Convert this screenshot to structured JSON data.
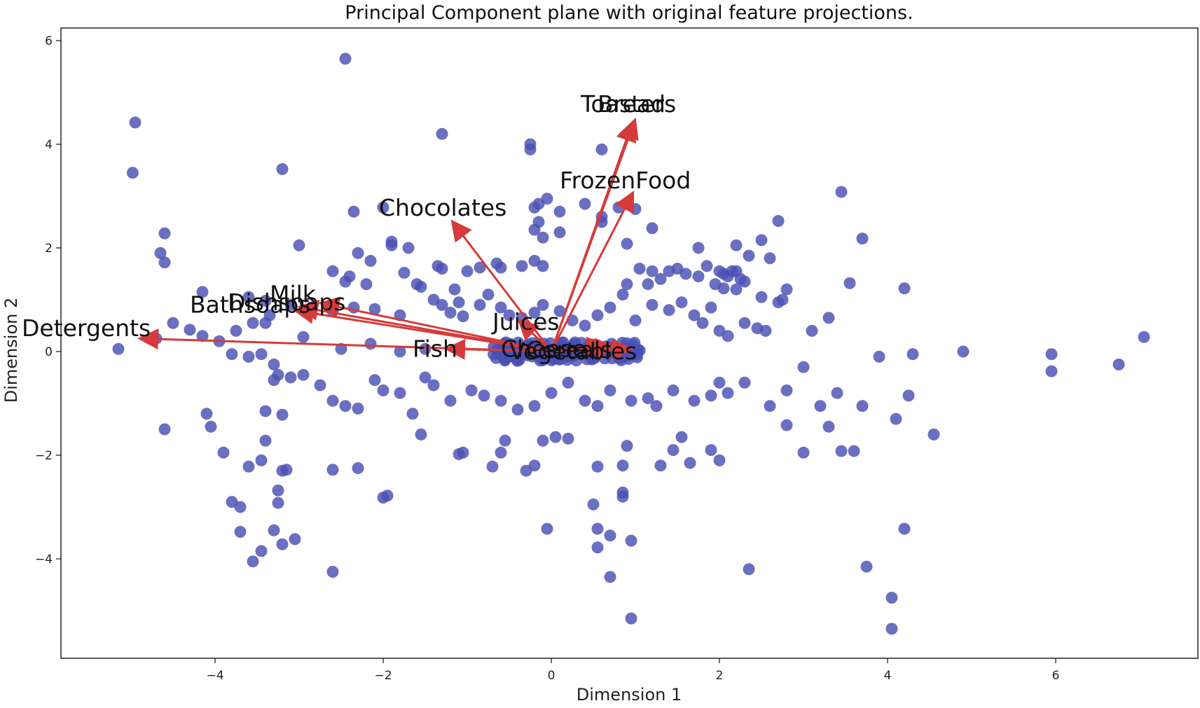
{
  "chart_data": {
    "type": "scatter",
    "title": "Principal Component plane with original feature projections.",
    "xlabel": "Dimension 1",
    "ylabel": "Dimension 2",
    "xlim": [
      -5.8,
      7.8
    ],
    "ylim": [
      -5.9,
      6.3
    ],
    "xticks": [
      -4,
      -2,
      0,
      2,
      4,
      6
    ],
    "yticks": [
      -4,
      -2,
      0,
      2,
      4,
      6
    ],
    "grid": false,
    "point_color": "#4b4fb3",
    "arrow_color": "#d63a3a",
    "points": [
      [
        -2.45,
        5.65
      ],
      [
        -4.95,
        4.42
      ],
      [
        -4.98,
        3.45
      ],
      [
        -3.2,
        3.52
      ],
      [
        -1.3,
        4.2
      ],
      [
        -0.25,
        4.0
      ],
      [
        -0.25,
        3.9
      ],
      [
        0.6,
        3.9
      ],
      [
        3.45,
        3.08
      ],
      [
        -2.35,
        2.7
      ],
      [
        -2.0,
        2.78
      ],
      [
        -4.6,
        2.28
      ],
      [
        -4.65,
        1.9
      ],
      [
        -4.6,
        1.72
      ],
      [
        -3.0,
        2.05
      ],
      [
        -1.9,
        2.12
      ],
      [
        -1.9,
        2.05
      ],
      [
        -1.7,
        2.0
      ],
      [
        -2.3,
        1.9
      ],
      [
        -2.15,
        1.75
      ],
      [
        -2.6,
        1.55
      ],
      [
        -2.4,
        1.45
      ],
      [
        -2.45,
        1.35
      ],
      [
        -2.2,
        1.3
      ],
      [
        -1.75,
        1.52
      ],
      [
        -1.6,
        1.3
      ],
      [
        -1.35,
        1.65
      ],
      [
        -1.3,
        1.6
      ],
      [
        -1.15,
        1.2
      ],
      [
        -1.0,
        1.55
      ],
      [
        -0.85,
        1.62
      ],
      [
        -0.65,
        1.7
      ],
      [
        -0.6,
        1.62
      ],
      [
        -0.35,
        1.65
      ],
      [
        -0.2,
        1.75
      ],
      [
        -0.1,
        1.65
      ],
      [
        -0.2,
        2.35
      ],
      [
        -0.1,
        2.2
      ],
      [
        -0.15,
        2.5
      ],
      [
        -0.2,
        2.78
      ],
      [
        -0.15,
        2.85
      ],
      [
        -0.05,
        2.95
      ],
      [
        0.1,
        2.7
      ],
      [
        0.1,
        2.3
      ],
      [
        0.4,
        2.85
      ],
      [
        0.6,
        2.6
      ],
      [
        0.6,
        2.5
      ],
      [
        0.8,
        2.78
      ],
      [
        1.0,
        2.75
      ],
      [
        1.2,
        2.38
      ],
      [
        0.9,
        2.08
      ],
      [
        1.05,
        1.6
      ],
      [
        1.15,
        1.3
      ],
      [
        1.2,
        1.55
      ],
      [
        1.3,
        1.4
      ],
      [
        1.4,
        1.55
      ],
      [
        1.5,
        1.6
      ],
      [
        1.75,
        2.0
      ],
      [
        1.75,
        1.45
      ],
      [
        1.85,
        1.65
      ],
      [
        1.6,
        1.5
      ],
      [
        1.95,
        1.3
      ],
      [
        2.0,
        1.55
      ],
      [
        2.05,
        1.5
      ],
      [
        2.1,
        1.45
      ],
      [
        2.15,
        1.55
      ],
      [
        2.2,
        1.55
      ],
      [
        2.25,
        1.4
      ],
      [
        2.2,
        1.2
      ],
      [
        2.05,
        1.22
      ],
      [
        2.3,
        1.35
      ],
      [
        2.2,
        2.05
      ],
      [
        2.35,
        1.85
      ],
      [
        2.5,
        2.15
      ],
      [
        2.6,
        1.8
      ],
      [
        2.7,
        2.52
      ],
      [
        3.7,
        2.18
      ],
      [
        3.55,
        1.32
      ],
      [
        4.2,
        1.22
      ],
      [
        -4.15,
        1.15
      ],
      [
        -3.6,
        1.05
      ],
      [
        -3.4,
        0.98
      ],
      [
        -3.1,
        0.9
      ],
      [
        -2.85,
        0.85
      ],
      [
        -2.6,
        0.78
      ],
      [
        -2.35,
        0.85
      ],
      [
        -2.1,
        0.82
      ],
      [
        -1.8,
        0.7
      ],
      [
        -1.55,
        1.25
      ],
      [
        -1.4,
        1.0
      ],
      [
        -1.3,
        0.9
      ],
      [
        -1.2,
        0.75
      ],
      [
        -1.1,
        0.95
      ],
      [
        -1.05,
        0.68
      ],
      [
        -0.85,
        0.9
      ],
      [
        -0.75,
        1.1
      ],
      [
        -0.6,
        0.85
      ],
      [
        -0.5,
        0.7
      ],
      [
        -0.35,
        0.65
      ],
      [
        -0.2,
        0.75
      ],
      [
        -0.1,
        0.9
      ],
      [
        0.1,
        0.78
      ],
      [
        0.25,
        0.6
      ],
      [
        0.4,
        0.5
      ],
      [
        0.55,
        0.7
      ],
      [
        0.7,
        0.85
      ],
      [
        0.85,
        1.1
      ],
      [
        0.9,
        1.3
      ],
      [
        1.0,
        0.6
      ],
      [
        1.2,
        0.9
      ],
      [
        1.4,
        0.8
      ],
      [
        1.55,
        0.95
      ],
      [
        1.7,
        0.7
      ],
      [
        1.8,
        0.55
      ],
      [
        1.9,
        0.85
      ],
      [
        2.0,
        0.4
      ],
      [
        2.1,
        0.3
      ],
      [
        2.3,
        0.55
      ],
      [
        2.45,
        0.45
      ],
      [
        2.55,
        0.4
      ],
      [
        2.7,
        0.95
      ],
      [
        2.75,
        1.0
      ],
      [
        2.8,
        1.2
      ],
      [
        2.5,
        1.05
      ],
      [
        3.1,
        0.4
      ],
      [
        3.3,
        0.65
      ],
      [
        -4.5,
        0.55
      ],
      [
        -4.3,
        0.42
      ],
      [
        -4.15,
        0.3
      ],
      [
        -3.95,
        0.2
      ],
      [
        -3.75,
        0.4
      ],
      [
        -3.55,
        0.55
      ],
      [
        -3.35,
        0.7
      ],
      [
        -3.4,
        0.55
      ],
      [
        -3.6,
        -0.1
      ],
      [
        -3.45,
        -0.05
      ],
      [
        -3.3,
        -0.25
      ],
      [
        -3.25,
        -0.45
      ],
      [
        -3.3,
        -0.55
      ],
      [
        -3.1,
        -0.5
      ],
      [
        -2.95,
        -0.45
      ],
      [
        -2.75,
        -0.65
      ],
      [
        -2.6,
        -0.95
      ],
      [
        -2.45,
        -1.05
      ],
      [
        -2.3,
        -1.1
      ],
      [
        -2.1,
        -0.55
      ],
      [
        -2.0,
        -0.75
      ],
      [
        -1.8,
        -0.8
      ],
      [
        -1.65,
        -1.2
      ],
      [
        -1.5,
        -0.5
      ],
      [
        -1.4,
        -0.65
      ],
      [
        -1.2,
        -0.95
      ],
      [
        -0.95,
        -0.75
      ],
      [
        -0.8,
        -0.85
      ],
      [
        -0.6,
        -0.95
      ],
      [
        -0.4,
        -1.12
      ],
      [
        -0.2,
        -1.05
      ],
      [
        0.0,
        -0.8
      ],
      [
        0.2,
        -0.6
      ],
      [
        0.4,
        -0.95
      ],
      [
        0.55,
        -1.05
      ],
      [
        0.7,
        -0.75
      ],
      [
        0.95,
        -0.95
      ],
      [
        1.15,
        -0.9
      ],
      [
        1.25,
        -1.05
      ],
      [
        1.45,
        -0.75
      ],
      [
        1.7,
        -0.95
      ],
      [
        1.9,
        -0.85
      ],
      [
        2.0,
        -0.6
      ],
      [
        2.1,
        -0.8
      ],
      [
        2.3,
        -0.6
      ],
      [
        2.6,
        -1.05
      ],
      [
        2.8,
        -0.75
      ],
      [
        3.0,
        -0.3
      ],
      [
        3.2,
        -1.05
      ],
      [
        3.4,
        -0.8
      ],
      [
        3.7,
        -1.05
      ],
      [
        3.9,
        -0.1
      ],
      [
        4.3,
        -0.05
      ],
      [
        4.25,
        -0.85
      ],
      [
        4.1,
        -1.3
      ],
      [
        4.55,
        -1.6
      ],
      [
        4.9,
        0.0
      ],
      [
        5.95,
        -0.05
      ],
      [
        5.95,
        -0.38
      ],
      [
        6.75,
        -0.25
      ],
      [
        7.05,
        0.28
      ],
      [
        -4.1,
        -1.2
      ],
      [
        -4.05,
        -1.45
      ],
      [
        -4.6,
        -1.5
      ],
      [
        -3.9,
        -1.95
      ],
      [
        -3.6,
        -2.22
      ],
      [
        -3.45,
        -2.1
      ],
      [
        -3.4,
        -1.72
      ],
      [
        -3.4,
        -1.15
      ],
      [
        -3.2,
        -1.22
      ],
      [
        -3.2,
        -2.3
      ],
      [
        -3.15,
        -2.28
      ],
      [
        -3.25,
        -2.68
      ],
      [
        -3.25,
        -2.92
      ],
      [
        -2.6,
        -2.28
      ],
      [
        -2.3,
        -2.25
      ],
      [
        -2.0,
        -2.82
      ],
      [
        -1.95,
        -2.78
      ],
      [
        -1.55,
        -1.6
      ],
      [
        -1.1,
        -1.98
      ],
      [
        -1.05,
        -1.95
      ],
      [
        -0.7,
        -2.22
      ],
      [
        -0.6,
        -1.95
      ],
      [
        -0.55,
        -1.72
      ],
      [
        -0.3,
        -2.3
      ],
      [
        -0.2,
        -2.2
      ],
      [
        -0.1,
        -1.72
      ],
      [
        0.05,
        -1.65
      ],
      [
        0.2,
        -1.68
      ],
      [
        0.55,
        -2.22
      ],
      [
        0.85,
        -2.2
      ],
      [
        0.9,
        -1.82
      ],
      [
        0.85,
        -2.72
      ],
      [
        0.85,
        -2.8
      ],
      [
        1.3,
        -2.2
      ],
      [
        1.45,
        -1.9
      ],
      [
        1.55,
        -1.65
      ],
      [
        1.65,
        -2.15
      ],
      [
        1.9,
        -1.9
      ],
      [
        2.0,
        -2.1
      ],
      [
        2.8,
        -1.42
      ],
      [
        3.0,
        -1.95
      ],
      [
        3.3,
        -1.45
      ],
      [
        3.45,
        -1.92
      ],
      [
        3.6,
        -1.92
      ],
      [
        -3.8,
        -2.9
      ],
      [
        -3.7,
        -3.0
      ],
      [
        -3.7,
        -3.48
      ],
      [
        -3.3,
        -3.45
      ],
      [
        -3.05,
        -3.62
      ],
      [
        -3.2,
        -3.72
      ],
      [
        -3.45,
        -3.85
      ],
      [
        -3.55,
        -4.05
      ],
      [
        -2.6,
        -4.25
      ],
      [
        -0.05,
        -3.42
      ],
      [
        0.5,
        -2.95
      ],
      [
        0.55,
        -3.42
      ],
      [
        0.7,
        -3.55
      ],
      [
        0.55,
        -3.78
      ],
      [
        0.95,
        -3.65
      ],
      [
        0.7,
        -4.35
      ],
      [
        0.95,
        -5.15
      ],
      [
        2.35,
        -4.2
      ],
      [
        3.75,
        -4.15
      ],
      [
        4.05,
        -4.75
      ],
      [
        4.05,
        -5.35
      ],
      [
        4.2,
        -3.42
      ],
      [
        -5.15,
        0.05
      ],
      [
        -4.7,
        0.25
      ],
      [
        -3.8,
        -0.05
      ],
      [
        -2.95,
        0.28
      ],
      [
        -2.5,
        0.05
      ],
      [
        -2.15,
        0.15
      ],
      [
        -1.8,
        0.0
      ],
      [
        -1.5,
        0.05
      ]
    ],
    "cluster": {
      "center": [
        0.2,
        0.0
      ],
      "count": 140,
      "spread": [
        0.9,
        0.18
      ]
    },
    "features": [
      {
        "name": "Detergents",
        "end": [
          -4.85,
          0.25
        ],
        "label_at": [
          -6.3,
          0.3
        ]
      },
      {
        "name": "Milk",
        "end": [
          -2.7,
          0.92
        ],
        "label_at": [
          -3.35,
          0.95
        ]
      },
      {
        "name": "Dishsoaps",
        "end": [
          -2.95,
          0.85
        ],
        "label_at": [
          -3.85,
          0.8
        ]
      },
      {
        "name": "Bathsoaps",
        "end": [
          -3.0,
          0.78
        ],
        "label_at": [
          -4.3,
          0.75
        ]
      },
      {
        "name": "Chocolates",
        "end": [
          -1.15,
          2.45
        ],
        "label_at": [
          -2.05,
          2.62
        ]
      },
      {
        "name": "FrozenFood",
        "end": [
          0.95,
          3.0
        ],
        "label_at": [
          0.1,
          3.15
        ]
      },
      {
        "name": "Bread",
        "end": [
          0.95,
          4.35
        ],
        "label_at": [
          0.55,
          4.62
        ]
      },
      {
        "name": "Toasters",
        "end": [
          0.98,
          4.4
        ],
        "label_at": [
          0.35,
          4.62
        ]
      },
      {
        "name": "Juices",
        "end": [
          -0.35,
          0.55
        ],
        "label_at": [
          -0.7,
          0.42
        ]
      },
      {
        "name": "Fish",
        "end": [
          -1.2,
          0.05
        ],
        "label_at": [
          -1.65,
          -0.1
        ]
      },
      {
        "name": "Cheese",
        "end": [
          0.6,
          0.12
        ],
        "label_at": [
          -0.6,
          -0.1
        ]
      },
      {
        "name": "Vegetables",
        "end": [
          0.7,
          0.08
        ],
        "label_at": [
          -0.5,
          -0.15
        ]
      },
      {
        "name": "Cereals",
        "end": [
          0.9,
          0.05
        ],
        "label_at": [
          -0.3,
          -0.12
        ]
      }
    ]
  }
}
